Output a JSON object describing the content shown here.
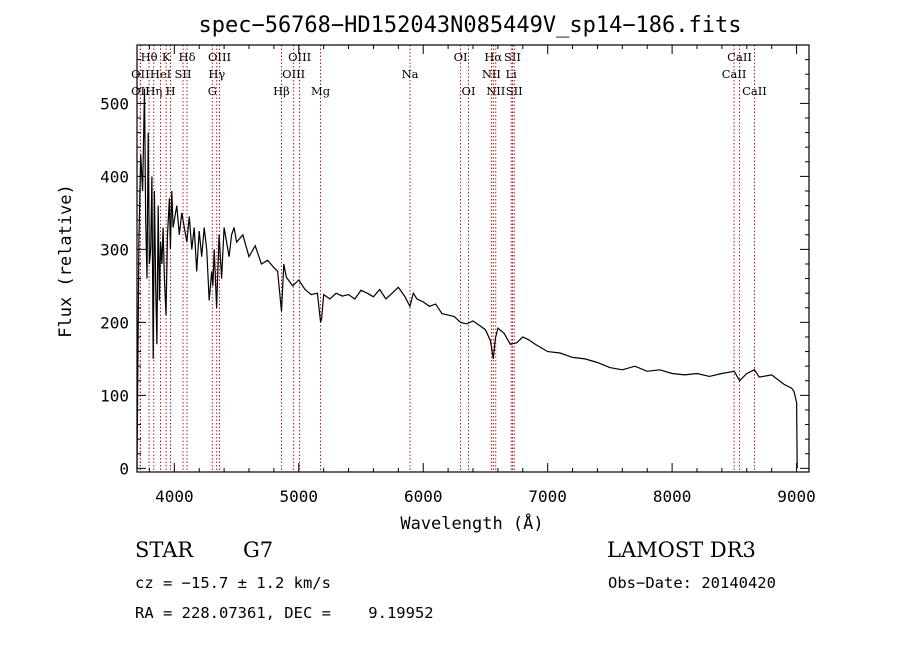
{
  "chart_data": {
    "type": "line",
    "title": "spec−56768−HD152043N085449V_sp14−186.fits",
    "xlabel": "Wavelength (Å)",
    "ylabel": "Flux (relative)",
    "xlim": [
      3700,
      9100
    ],
    "ylim": [
      -5,
      580
    ],
    "xticks": [
      4000,
      5000,
      6000,
      7000,
      8000,
      9000
    ],
    "yticks": [
      0,
      100,
      200,
      300,
      400,
      500
    ],
    "series": [
      {
        "name": "flux",
        "x": [
          3700,
          3715,
          3730,
          3745,
          3760,
          3770,
          3780,
          3790,
          3800,
          3810,
          3820,
          3830,
          3840,
          3850,
          3860,
          3870,
          3880,
          3890,
          3900,
          3910,
          3920,
          3933,
          3945,
          3960,
          3968,
          3980,
          3990,
          4000,
          4020,
          4040,
          4060,
          4080,
          4101,
          4120,
          4140,
          4160,
          4180,
          4200,
          4220,
          4240,
          4260,
          4280,
          4300,
          4310,
          4320,
          4340,
          4360,
          4380,
          4400,
          4420,
          4440,
          4460,
          4480,
          4500,
          4550,
          4600,
          4650,
          4700,
          4750,
          4800,
          4830,
          4861,
          4880,
          4900,
          4950,
          5000,
          5050,
          5100,
          5150,
          5175,
          5183,
          5200,
          5250,
          5300,
          5350,
          5400,
          5450,
          5500,
          5550,
          5600,
          5650,
          5700,
          5750,
          5800,
          5850,
          5893,
          5920,
          5950,
          6000,
          6050,
          6100,
          6150,
          6200,
          6250,
          6300,
          6350,
          6400,
          6450,
          6500,
          6540,
          6563,
          6580,
          6600,
          6650,
          6700,
          6750,
          6800,
          6850,
          6900,
          6950,
          7000,
          7100,
          7200,
          7300,
          7400,
          7500,
          7600,
          7700,
          7800,
          7900,
          8000,
          8100,
          8200,
          8300,
          8400,
          8500,
          8542,
          8600,
          8662,
          8700,
          8800,
          8900,
          8960,
          8980,
          9000,
          9005
        ],
        "values": [
          0,
          310,
          430,
          380,
          520,
          340,
          260,
          460,
          280,
          300,
          400,
          150,
          380,
          250,
          170,
          360,
          230,
          310,
          280,
          330,
          260,
          210,
          320,
          370,
          300,
          380,
          330,
          340,
          360,
          320,
          350,
          330,
          310,
          345,
          300,
          330,
          270,
          325,
          290,
          330,
          300,
          230,
          270,
          250,
          300,
          220,
          320,
          260,
          330,
          310,
          290,
          320,
          330,
          310,
          320,
          290,
          305,
          280,
          285,
          275,
          270,
          215,
          280,
          262,
          250,
          258,
          245,
          238,
          240,
          200,
          205,
          238,
          232,
          240,
          236,
          238,
          232,
          244,
          240,
          235,
          245,
          232,
          240,
          248,
          236,
          222,
          240,
          232,
          228,
          222,
          225,
          212,
          210,
          208,
          200,
          198,
          202,
          196,
          190,
          175,
          150,
          178,
          192,
          185,
          170,
          172,
          180,
          176,
          170,
          165,
          160,
          158,
          152,
          150,
          145,
          138,
          135,
          140,
          133,
          135,
          130,
          128,
          130,
          126,
          130,
          133,
          120,
          130,
          135,
          125,
          128,
          115,
          110,
          105,
          90,
          0
        ]
      }
    ],
    "lines": [
      {
        "label": "OII",
        "wl": 3727,
        "row": 2
      },
      {
        "label": "Hθ",
        "wl": 3797,
        "row": 0
      },
      {
        "label": "OII",
        "wl": 3727,
        "row": 1
      },
      {
        "label": "Hη",
        "wl": 3835,
        "row": 2
      },
      {
        "label": "HeI",
        "wl": 3889,
        "row": 1
      },
      {
        "label": "K",
        "wl": 3934,
        "row": 0
      },
      {
        "label": "H",
        "wl": 3969,
        "row": 2
      },
      {
        "label": "SII",
        "wl": 4070,
        "row": 1
      },
      {
        "label": "Hδ",
        "wl": 4102,
        "row": 0
      },
      {
        "label": "G",
        "wl": 4305,
        "row": 2
      },
      {
        "label": "Hγ",
        "wl": 4341,
        "row": 1
      },
      {
        "label": "OIII",
        "wl": 4363,
        "row": 0
      },
      {
        "label": "Hβ",
        "wl": 4861,
        "row": 2
      },
      {
        "label": "OIII",
        "wl": 4959,
        "row": 1
      },
      {
        "label": "OIII",
        "wl": 5007,
        "row": 0
      },
      {
        "label": "Mg",
        "wl": 5175,
        "row": 2
      },
      {
        "label": "Na",
        "wl": 5894,
        "row": 1
      },
      {
        "label": "OI",
        "wl": 6300,
        "row": 0
      },
      {
        "label": "OI",
        "wl": 6364,
        "row": 2
      },
      {
        "label": "NII",
        "wl": 6548,
        "row": 1
      },
      {
        "label": "NII",
        "wl": 6583,
        "row": 2
      },
      {
        "label": "Hα",
        "wl": 6563,
        "row": 0
      },
      {
        "label": "SII",
        "wl": 6717,
        "row": 0
      },
      {
        "label": "Li",
        "wl": 6707,
        "row": 1
      },
      {
        "label": "SII",
        "wl": 6731,
        "row": 2
      },
      {
        "label": "CaII",
        "wl": 8542,
        "row": 0
      },
      {
        "label": "CaII",
        "wl": 8498,
        "row": 1
      },
      {
        "label": "CaII",
        "wl": 8662,
        "row": 2
      }
    ]
  },
  "info": {
    "class": "STAR",
    "subclass": "G7",
    "survey": "LAMOST DR3",
    "cz": "cz = −15.7 ± 1.2 km/s",
    "obs_date": "Obs−Date: 20140420",
    "coords": "RA = 228.07361, DEC =    9.19952"
  }
}
